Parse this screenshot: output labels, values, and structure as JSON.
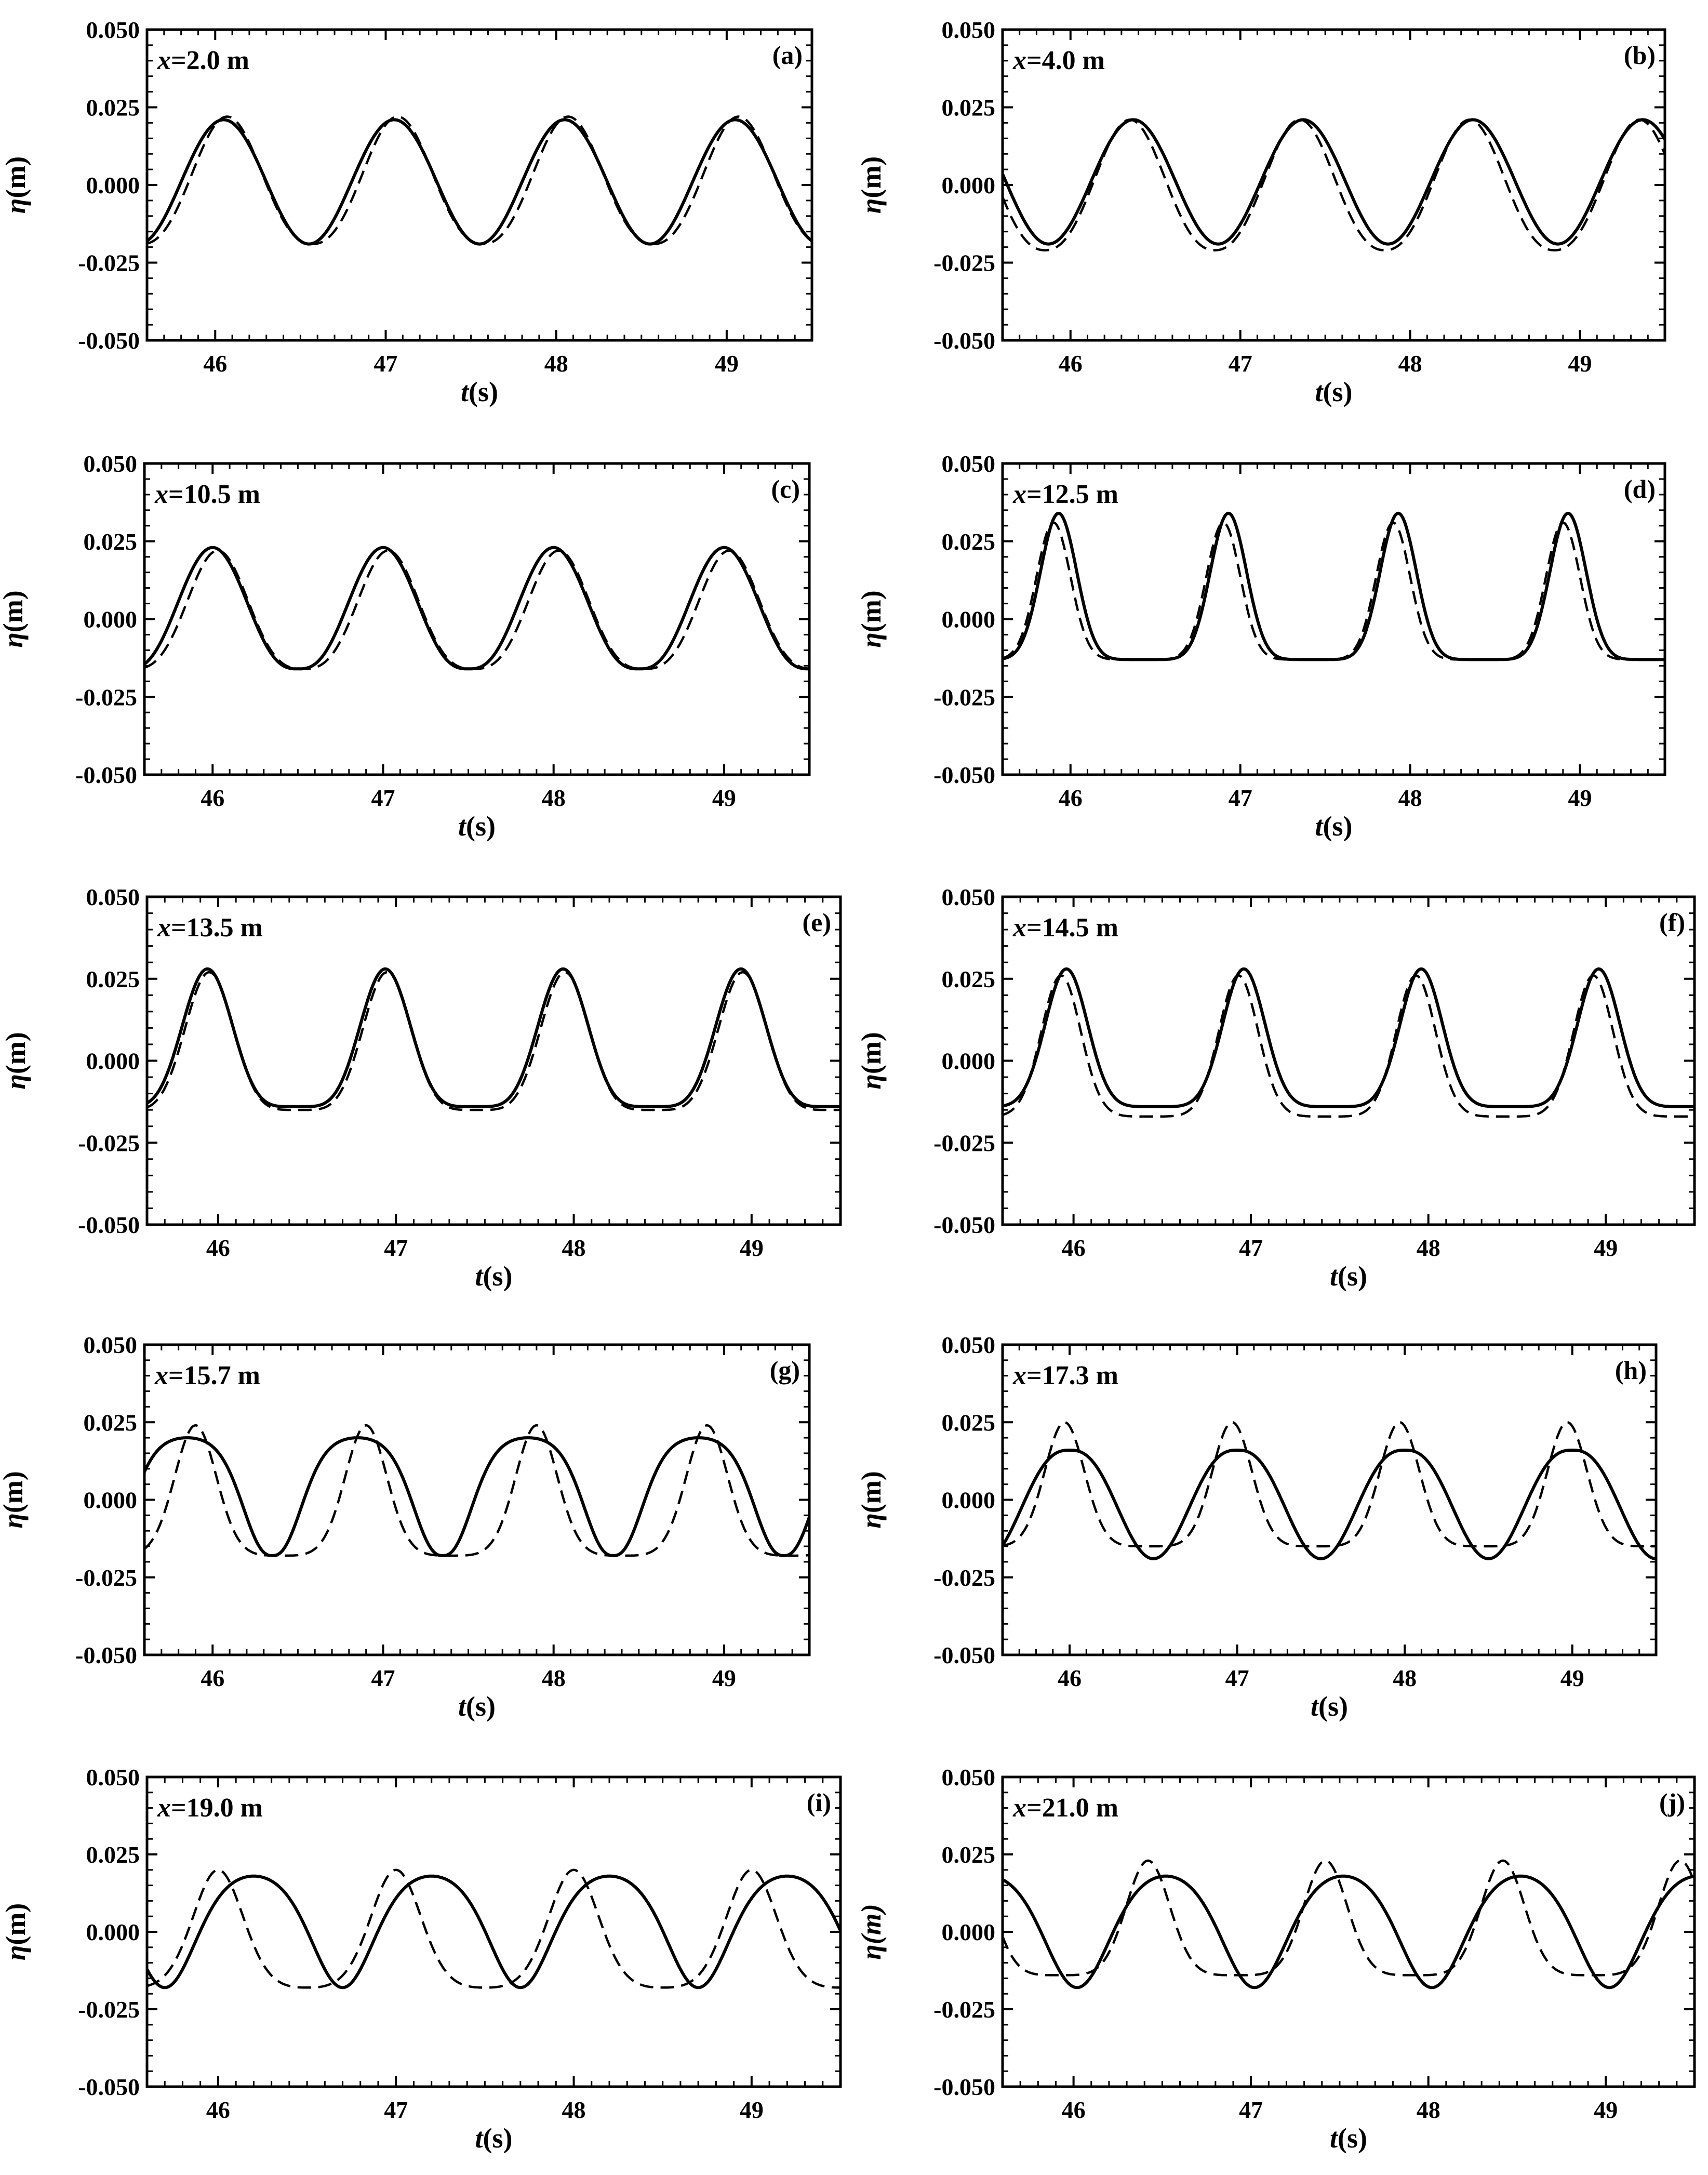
{
  "figure": {
    "xlabel_var": "t",
    "xlabel_unit": "(s)",
    "ylabel_var": "η",
    "ylabel_unit": "(m)",
    "ylabel_unit_italic_m": "(m)"
  },
  "chart_data": [
    {
      "type": "line",
      "panel": "(a)",
      "position_var": "x",
      "position_value": "=2.0 m",
      "xlim": [
        45.6,
        49.5
      ],
      "ylim": [
        -0.05,
        0.05
      ],
      "xticks": [
        "46",
        "47",
        "48",
        "49"
      ],
      "yticks": [
        "0.050",
        "0.025",
        "0.000",
        "-0.025",
        "-0.050"
      ],
      "grid": false,
      "series": [
        {
          "style": "solid",
          "period": 1.0,
          "crest_time": 46.05,
          "crest": 0.021,
          "trough": -0.019,
          "skew": 0.0,
          "sharp": 0.0
        },
        {
          "style": "dashed",
          "period": 1.0,
          "crest_time": 46.07,
          "crest": 0.022,
          "trough": -0.019,
          "skew": 0.1,
          "sharp": 0.05
        }
      ]
    },
    {
      "type": "line",
      "panel": "(b)",
      "position_var": "x",
      "position_value": "=4.0 m",
      "xlim": [
        45.6,
        49.5
      ],
      "ylim": [
        -0.05,
        0.05
      ],
      "xticks": [
        "46",
        "47",
        "48",
        "49"
      ],
      "yticks": [
        "0.050",
        "0.025",
        "0.000",
        "-0.025",
        "-0.050"
      ],
      "grid": false,
      "series": [
        {
          "style": "solid",
          "period": 1.0,
          "crest_time": 46.37,
          "crest": 0.021,
          "trough": -0.019,
          "skew": 0.0,
          "sharp": 0.0
        },
        {
          "style": "dashed",
          "period": 1.0,
          "crest_time": 46.35,
          "crest": 0.021,
          "trough": -0.021,
          "skew": 0.1,
          "sharp": 0.05
        }
      ]
    },
    {
      "type": "line",
      "panel": "(c)",
      "position_var": "x",
      "position_value": "=10.5 m",
      "xlim": [
        45.6,
        49.5
      ],
      "ylim": [
        -0.05,
        0.05
      ],
      "xticks": [
        "46",
        "47",
        "48",
        "49"
      ],
      "yticks": [
        "0.050",
        "0.025",
        "0.000",
        "-0.025",
        "-0.050"
      ],
      "grid": false,
      "series": [
        {
          "style": "solid",
          "period": 1.0,
          "crest_time": 46.0,
          "crest": 0.023,
          "trough": -0.016,
          "skew": 0.0,
          "sharp": 0.15
        },
        {
          "style": "dashed",
          "period": 1.0,
          "crest_time": 46.03,
          "crest": 0.022,
          "trough": -0.016,
          "skew": 0.12,
          "sharp": 0.15
        }
      ]
    },
    {
      "type": "line",
      "panel": "(d)",
      "position_var": "x",
      "position_value": "=12.5 m",
      "xlim": [
        45.6,
        49.5
      ],
      "ylim": [
        -0.05,
        0.05
      ],
      "xticks": [
        "46",
        "47",
        "48",
        "49"
      ],
      "yticks": [
        "0.050",
        "0.025",
        "0.000",
        "-0.025",
        "-0.050"
      ],
      "grid": false,
      "series": [
        {
          "style": "solid",
          "period": 1.0,
          "crest_time": 45.93,
          "crest": 0.034,
          "trough": -0.013,
          "skew": 0.2,
          "sharp": 0.85
        },
        {
          "style": "dashed",
          "period": 1.0,
          "crest_time": 45.9,
          "crest": 0.031,
          "trough": -0.013,
          "skew": 0.3,
          "sharp": 0.8
        }
      ]
    },
    {
      "type": "line",
      "panel": "(e)",
      "position_var": "x",
      "position_value": "=13.5 m",
      "xlim": [
        45.6,
        49.5
      ],
      "ylim": [
        -0.05,
        0.05
      ],
      "xticks": [
        "46",
        "47",
        "48",
        "49"
      ],
      "yticks": [
        "0.050",
        "0.025",
        "0.000",
        "-0.025",
        "-0.050"
      ],
      "grid": false,
      "series": [
        {
          "style": "solid",
          "period": 1.0,
          "crest_time": 45.94,
          "crest": 0.028,
          "trough": -0.014,
          "skew": 0.05,
          "sharp": 0.55
        },
        {
          "style": "dashed",
          "period": 1.0,
          "crest_time": 45.95,
          "crest": 0.027,
          "trough": -0.015,
          "skew": 0.12,
          "sharp": 0.5
        }
      ]
    },
    {
      "type": "line",
      "panel": "(f)",
      "position_var": "x",
      "position_value": "=14.5 m",
      "xlim": [
        45.6,
        49.5
      ],
      "ylim": [
        -0.05,
        0.05
      ],
      "xticks": [
        "46",
        "47",
        "48",
        "49"
      ],
      "yticks": [
        "0.050",
        "0.025",
        "0.000",
        "-0.025",
        "-0.050"
      ],
      "grid": false,
      "series": [
        {
          "style": "solid",
          "period": 1.0,
          "crest_time": 45.96,
          "crest": 0.028,
          "trough": -0.014,
          "skew": 0.2,
          "sharp": 0.6
        },
        {
          "style": "dashed",
          "period": 1.0,
          "crest_time": 45.93,
          "crest": 0.026,
          "trough": -0.017,
          "skew": 0.4,
          "sharp": 0.45
        }
      ]
    },
    {
      "type": "line",
      "panel": "(g)",
      "position_var": "x",
      "position_value": "=15.7 m",
      "xlim": [
        45.6,
        49.5
      ],
      "ylim": [
        -0.05,
        0.05
      ],
      "xticks": [
        "46",
        "47",
        "48",
        "49"
      ],
      "yticks": [
        "0.050",
        "0.025",
        "0.000",
        "-0.025",
        "-0.050"
      ],
      "grid": false,
      "series": [
        {
          "style": "solid",
          "period": 1.0,
          "crest_time": 45.85,
          "crest": 0.02,
          "trough": -0.018,
          "skew": -0.55,
          "sharp": 0.1
        },
        {
          "style": "dashed",
          "period": 1.0,
          "crest_time": 45.9,
          "crest": 0.024,
          "trough": -0.018,
          "skew": 0.45,
          "sharp": 0.25
        }
      ]
    },
    {
      "type": "line",
      "panel": "(h)",
      "position_var": "x",
      "position_value": "=17.3 m",
      "xlim": [
        45.6,
        49.5
      ],
      "ylim": [
        -0.05,
        0.05
      ],
      "xticks": [
        "46",
        "47",
        "48",
        "49"
      ],
      "yticks": [
        "0.050",
        "0.025",
        "0.000",
        "-0.025",
        "-0.050"
      ],
      "grid": false,
      "series": [
        {
          "style": "solid",
          "period": 1.0,
          "crest_time": 46.0,
          "crest": 0.016,
          "trough": -0.019,
          "skew": 0.0,
          "sharp": -0.2
        },
        {
          "style": "dashed",
          "period": 1.0,
          "crest_time": 45.97,
          "crest": 0.025,
          "trough": -0.015,
          "skew": 0.35,
          "sharp": 0.4
        }
      ]
    },
    {
      "type": "line",
      "panel": "(i)",
      "position_var": "x",
      "position_value": "=19.0 m",
      "xlim": [
        45.6,
        49.5
      ],
      "ylim": [
        -0.05,
        0.05
      ],
      "xticks": [
        "46",
        "47",
        "48",
        "49"
      ],
      "yticks": [
        "0.050",
        "0.025",
        "0.000",
        "-0.025",
        "-0.050"
      ],
      "grid": false,
      "series": [
        {
          "style": "solid",
          "period": 1.0,
          "crest_time": 46.2,
          "crest": 0.018,
          "trough": -0.018,
          "skew": -0.35,
          "sharp": 0.0
        },
        {
          "style": "dashed",
          "period": 1.0,
          "crest_time": 46.0,
          "crest": 0.02,
          "trough": -0.018,
          "skew": 0.45,
          "sharp": 0.1
        }
      ]
    },
    {
      "type": "line",
      "panel": "(j)",
      "position_var": "x",
      "position_value": "=21.0 m",
      "xlim": [
        45.6,
        49.5
      ],
      "ylim": [
        -0.05,
        0.05
      ],
      "xticks": [
        "46",
        "47",
        "48",
        "49"
      ],
      "yticks": [
        "0.050",
        "0.025",
        "0.000",
        "-0.025",
        "-0.050"
      ],
      "grid": false,
      "series": [
        {
          "style": "solid",
          "period": 1.0,
          "crest_time": 46.52,
          "crest": 0.018,
          "trough": -0.018,
          "skew": -0.3,
          "sharp": 0.0
        },
        {
          "style": "dashed",
          "period": 1.0,
          "crest_time": 46.42,
          "crest": 0.023,
          "trough": -0.014,
          "skew": 0.35,
          "sharp": 0.35
        }
      ]
    }
  ]
}
